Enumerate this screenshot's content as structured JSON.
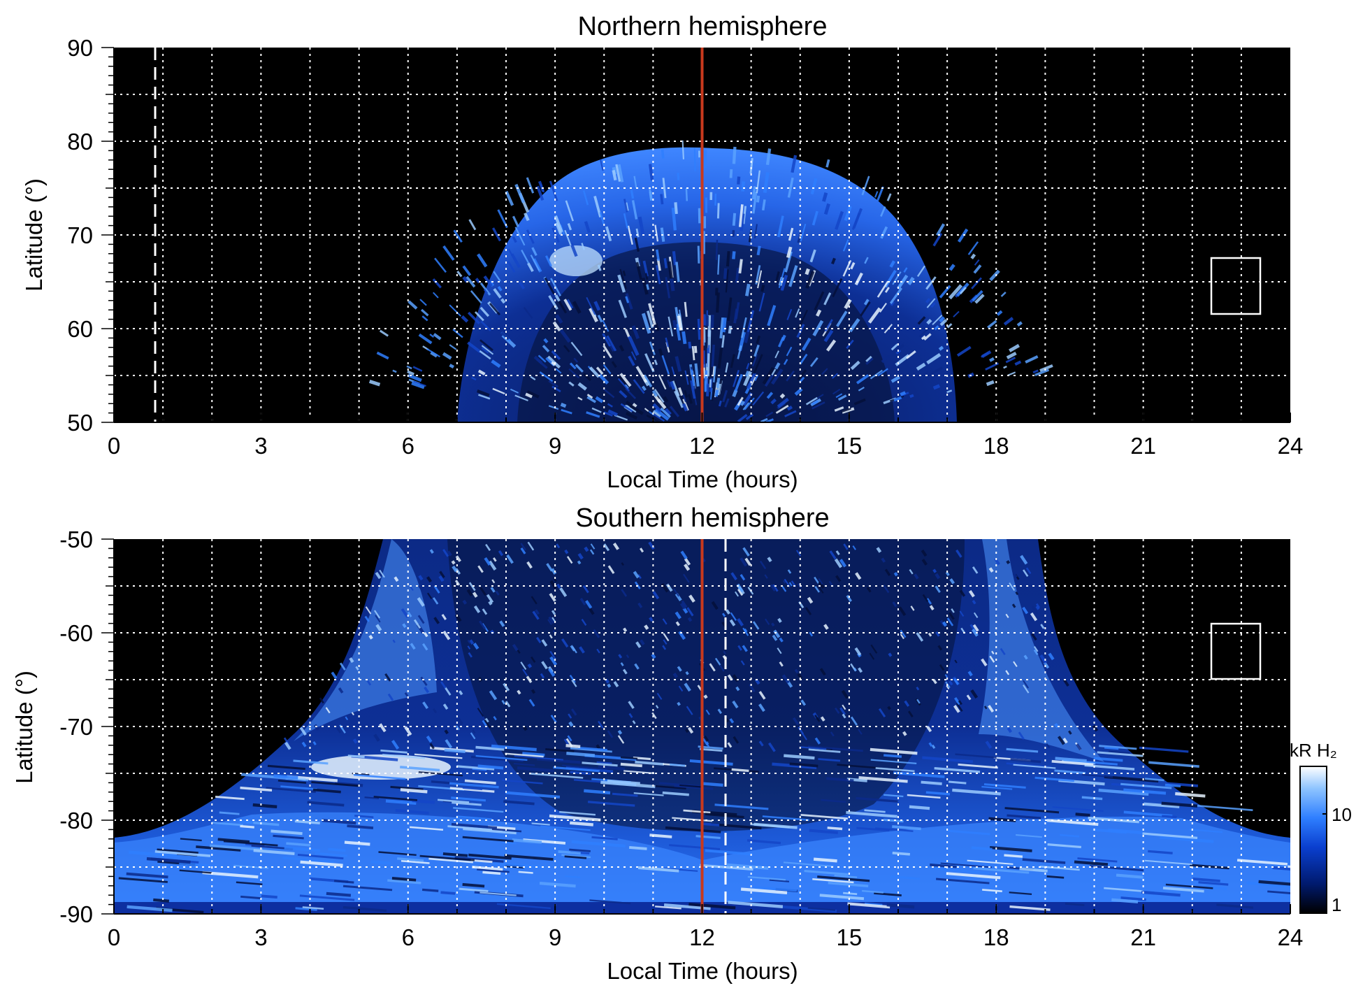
{
  "chart_data": [
    {
      "type": "heatmap",
      "title": "Northern hemisphere",
      "xlabel": "Local Time (hours)",
      "ylabel": "Latitude (°)",
      "xlim": [
        0,
        24
      ],
      "ylim": [
        50,
        90
      ],
      "xticks": [
        "0",
        "3",
        "6",
        "9",
        "12",
        "15",
        "18",
        "21",
        "24"
      ],
      "yticks": [
        "90",
        "80",
        "70",
        "60",
        "50"
      ],
      "grid": true,
      "background_color": "#000000",
      "emission": {
        "shape": "dome",
        "lt_range": [
          7.0,
          17.2
        ],
        "peak_latitude": 79.5,
        "peak_lt": 12.5,
        "bright_oval_latitude": 70,
        "bright_spot": {
          "lt": 9.4,
          "lat": 67
        }
      },
      "red_line_lt": 12.0,
      "red_line_color": "#c8391d",
      "dashed_line": {
        "lt": 0.85,
        "color": "#ffffff"
      },
      "box": {
        "lt": [
          22.5,
          23.5
        ],
        "lat": [
          61.5,
          67.5
        ]
      }
    },
    {
      "type": "heatmap",
      "title": "Southern hemisphere",
      "xlabel": "Local Time (hours)",
      "ylabel": "Latitude (°)",
      "xlim": [
        0,
        24
      ],
      "ylim": [
        -90,
        -50
      ],
      "xticks": [
        "0",
        "3",
        "6",
        "9",
        "12",
        "15",
        "18",
        "21",
        "24"
      ],
      "yticks": [
        "-50",
        "-60",
        "-70",
        "-80",
        "-90"
      ],
      "grid": true,
      "background_color": "#000000",
      "emission": {
        "shape": "bowl",
        "lt_range": [
          0,
          24
        ],
        "top_lt_range": [
          5.5,
          18.9
        ],
        "bright_bands": [
          {
            "lt": 6.3,
            "lat": -74.5
          },
          {
            "lt": 17.7,
            "lat": -72
          }
        ]
      },
      "red_line_lt": 12.0,
      "red_line_color": "#c8391d",
      "dashed_line": {
        "lt": 12.5,
        "color": "#ffffff"
      },
      "box": {
        "lt": [
          22.5,
          23.5
        ],
        "lat": [
          -65,
          -59
        ]
      },
      "colorbar": {
        "label": "kR H₂",
        "ticks": [
          "10",
          "1"
        ],
        "scale": "log",
        "range": [
          1,
          30
        ],
        "colors": [
          "#000000",
          "#001a6e",
          "#0a3fcf",
          "#2f7fff",
          "#8ec4ff",
          "#ffffff"
        ]
      }
    }
  ]
}
